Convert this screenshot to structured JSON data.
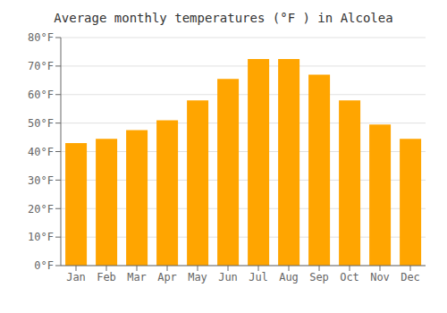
{
  "chart_data": {
    "type": "bar",
    "title": "Average monthly temperatures (°F ) in Alcolea",
    "categories": [
      "Jan",
      "Feb",
      "Mar",
      "Apr",
      "May",
      "Jun",
      "Jul",
      "Aug",
      "Sep",
      "Oct",
      "Nov",
      "Dec"
    ],
    "values": [
      43,
      44.5,
      47.5,
      51,
      58,
      65.5,
      72.5,
      72.5,
      67,
      58,
      49.5,
      44.5
    ],
    "color": "#FFA500",
    "ylim": [
      0,
      80
    ],
    "yticks": [
      {
        "value": 0,
        "label": "0°F"
      },
      {
        "value": 10,
        "label": "10°F"
      },
      {
        "value": 20,
        "label": "20°F"
      },
      {
        "value": 30,
        "label": "30°F"
      },
      {
        "value": 40,
        "label": "40°F"
      },
      {
        "value": 50,
        "label": "50°F"
      },
      {
        "value": 60,
        "label": "60°F"
      },
      {
        "value": 70,
        "label": "70°F"
      },
      {
        "value": 80,
        "label": "80°F"
      }
    ],
    "grid": true
  }
}
